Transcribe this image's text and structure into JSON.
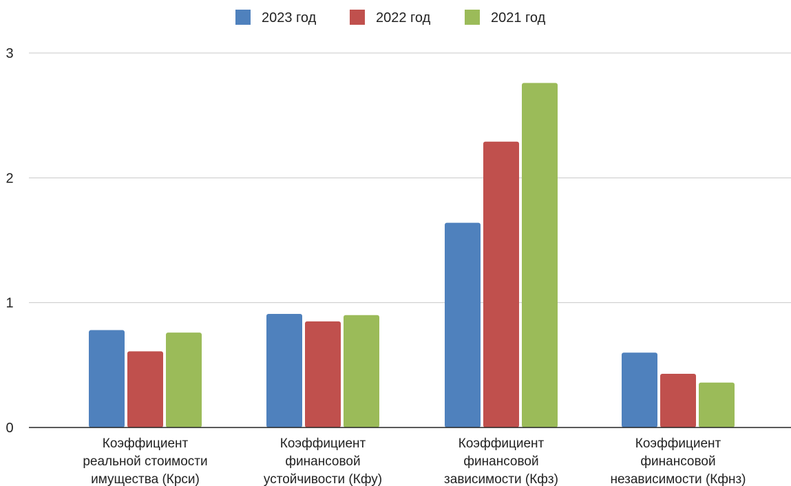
{
  "chart_data": {
    "type": "bar",
    "title": "",
    "xlabel": "",
    "ylabel": "",
    "ylim": [
      0,
      3
    ],
    "yticks": [
      0,
      1,
      2,
      3
    ],
    "grid": true,
    "legend_position": "top",
    "categories": [
      [
        "Коэффициент",
        "реальной стоимости",
        "имущества (Крси)"
      ],
      [
        "Коэффициент",
        "финансовой",
        "устойчивости (Кфу)"
      ],
      [
        "Коэффициент",
        "финансовой",
        "зависимости (Кфз)"
      ],
      [
        "Коэффициент",
        "финансовой",
        "независимости (Кфнз)"
      ]
    ],
    "series": [
      {
        "name": "2023 год",
        "color": "#4f81bd",
        "values": [
          0.78,
          0.91,
          1.64,
          0.6
        ]
      },
      {
        "name": "2022 год",
        "color": "#c0504d",
        "values": [
          0.61,
          0.85,
          2.29,
          0.43
        ]
      },
      {
        "name": "2021 год",
        "color": "#9bbb59",
        "values": [
          0.76,
          0.9,
          2.76,
          0.36
        ]
      }
    ]
  }
}
